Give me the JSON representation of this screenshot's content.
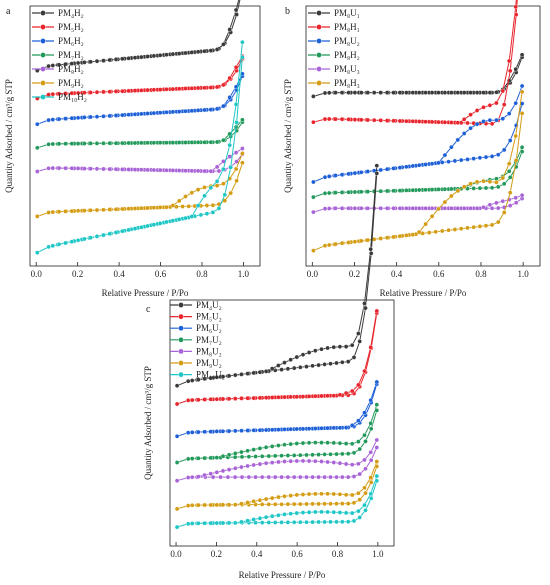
{
  "figure": {
    "panels": [
      {
        "id": "a",
        "letter": "a",
        "xlabel": "Relative Pressure / P/Po",
        "ylabel": "Quantity Adsorbed / cm³/g STP"
      },
      {
        "id": "b",
        "letter": "b",
        "xlabel": "Relative Pressure / P/Po",
        "ylabel": "Quantity Adsorbed / cm³/g STP"
      },
      {
        "id": "c",
        "letter": "c",
        "xlabel": "Relative Pressure / P/Po",
        "ylabel": "Quantity Adsorbed / cm³/g STP"
      }
    ]
  },
  "chart_data": [
    {
      "panel": "a",
      "type": "line",
      "subtype": "nitrogen adsorption-desorption isotherms (stacked, offset)",
      "xlabel": "Relative Pressure / P/Po",
      "ylabel": "Quantity Adsorbed / cm³/g STP",
      "xlim": [
        -0.03,
        1.08
      ],
      "x_ticks": [
        "0.0",
        "0.2",
        "0.4",
        "0.6",
        "0.8",
        "1.0"
      ],
      "y_ticks_shown": false,
      "legend_position": "top-left",
      "series": [
        {
          "name": "PM₄H₂",
          "color": "#3a3a3a",
          "base": 87,
          "plateau_slope": 9,
          "hyst_start": 0.9,
          "hyst_height": 3,
          "end_rise": 30
        },
        {
          "name": "PM₅H₂",
          "color": "#e8242c",
          "base": 74,
          "plateau_slope": 4,
          "hyst_start": 0.92,
          "hyst_height": 2,
          "end_rise": 14
        },
        {
          "name": "PM₆H₂",
          "color": "#1d5fd6",
          "base": 62,
          "plateau_slope": 6,
          "hyst_start": 0.9,
          "hyst_height": 2,
          "end_rise": 16
        },
        {
          "name": "PM₇H₂",
          "color": "#22995a",
          "base": 51,
          "plateau_slope": 1,
          "hyst_start": 0.9,
          "hyst_height": 2,
          "end_rise": 10
        },
        {
          "name": "PM₈H₂",
          "color": "#a864d6",
          "base": 40,
          "plateau_slope": -2,
          "hyst_start": 0.85,
          "hyst_height": 5,
          "end_rise": 9
        },
        {
          "name": "PM₉H₂",
          "color": "#d39c12",
          "base": 19,
          "plateau_slope": 4,
          "hyst_start": 0.65,
          "hyst_height": 9,
          "end_rise": 21
        },
        {
          "name": "PM₁₀H₂",
          "color": "#1fc6c6",
          "base": 2,
          "plateau_slope": 20,
          "hyst_start": 0.75,
          "hyst_height": 14,
          "end_rise": 76
        }
      ]
    },
    {
      "panel": "b",
      "type": "line",
      "subtype": "nitrogen adsorption-desorption isotherms (stacked, offset)",
      "xlabel": "Relative Pressure / P/Po",
      "ylabel": "Quantity Adsorbed / cm³/g STP",
      "xlim": [
        -0.03,
        1.08
      ],
      "x_ticks": [
        "0.0",
        "0.2",
        "0.4",
        "0.6",
        "0.8",
        "1.0"
      ],
      "y_ticks_shown": false,
      "legend_position": "top-left",
      "series": [
        {
          "name": "PM₈U₁",
          "color": "#3a3a3a",
          "base": 75,
          "plateau_slope": 0,
          "hyst_start": 0.9,
          "hyst_height": 2,
          "end_rise": 18
        },
        {
          "name": "PM₈H₁",
          "color": "#e8242c",
          "base": 63,
          "plateau_slope": -3,
          "hyst_start": 0.7,
          "hyst_height": 9,
          "end_rise": 98
        },
        {
          "name": "PM₈U₂",
          "color": "#1d5fd6",
          "base": 35,
          "plateau_slope": 12,
          "hyst_start": 0.6,
          "hyst_height": 17,
          "end_rise": 25
        },
        {
          "name": "PM₈H₂",
          "color": "#22995a",
          "base": 28,
          "plateau_slope": 3,
          "hyst_start": 0.7,
          "hyst_height": 4,
          "end_rise": 18
        },
        {
          "name": "PM₈U₃",
          "color": "#a864d6",
          "base": 21,
          "plateau_slope": 0,
          "hyst_start": 0.8,
          "hyst_height": 3,
          "end_rise": 5
        },
        {
          "name": "PM₈H₃",
          "color": "#d39c12",
          "base": 3,
          "plateau_slope": 12,
          "hyst_start": 0.5,
          "hyst_height": 21,
          "end_rise": 55
        }
      ]
    },
    {
      "panel": "c",
      "type": "line",
      "subtype": "nitrogen adsorption-desorption isotherms (stacked, offset)",
      "xlabel": "Relative Pressure / P/Po",
      "ylabel": "Quantity Adsorbed / cm³/g STP",
      "xlim": [
        -0.03,
        1.08
      ],
      "x_ticks": [
        "0.0",
        "0.2",
        "0.4",
        "0.6",
        "0.8",
        "1.0"
      ],
      "y_ticks_shown": false,
      "legend_position": "top-left",
      "series": [
        {
          "name": "PM₄U₂",
          "color": "#3a3a3a",
          "base": 75,
          "plateau_slope": 12,
          "hyst_start": 0.45,
          "hyst_height": 8,
          "end_rise": 100
        },
        {
          "name": "PM₅U₂",
          "color": "#e8242c",
          "base": 66,
          "plateau_slope": 3,
          "hyst_start": 0.8,
          "hyst_height": 2,
          "end_rise": 44
        },
        {
          "name": "PM₆U₂",
          "color": "#1d5fd6",
          "base": 50,
          "plateau_slope": 3,
          "hyst_start": 0.85,
          "hyst_height": 2,
          "end_rise": 23
        },
        {
          "name": "PM₇U₂",
          "color": "#22995a",
          "base": 37,
          "plateau_slope": 3,
          "hyst_start": 0.2,
          "hyst_height": 6,
          "end_rise": 23
        },
        {
          "name": "PM₈U₂",
          "color": "#a864d6",
          "base": 28,
          "plateau_slope": 0,
          "hyst_start": 0.1,
          "hyst_height": 8,
          "end_rise": 16
        },
        {
          "name": "PM₉U₂",
          "color": "#d39c12",
          "base": 14,
          "plateau_slope": 1,
          "hyst_start": 0.3,
          "hyst_height": 5,
          "end_rise": 20
        },
        {
          "name": "PM₁₀U₂",
          "color": "#1fc6c6",
          "base": 5,
          "plateau_slope": 1,
          "hyst_start": 0.3,
          "hyst_height": 5,
          "end_rise": 22
        }
      ]
    }
  ]
}
